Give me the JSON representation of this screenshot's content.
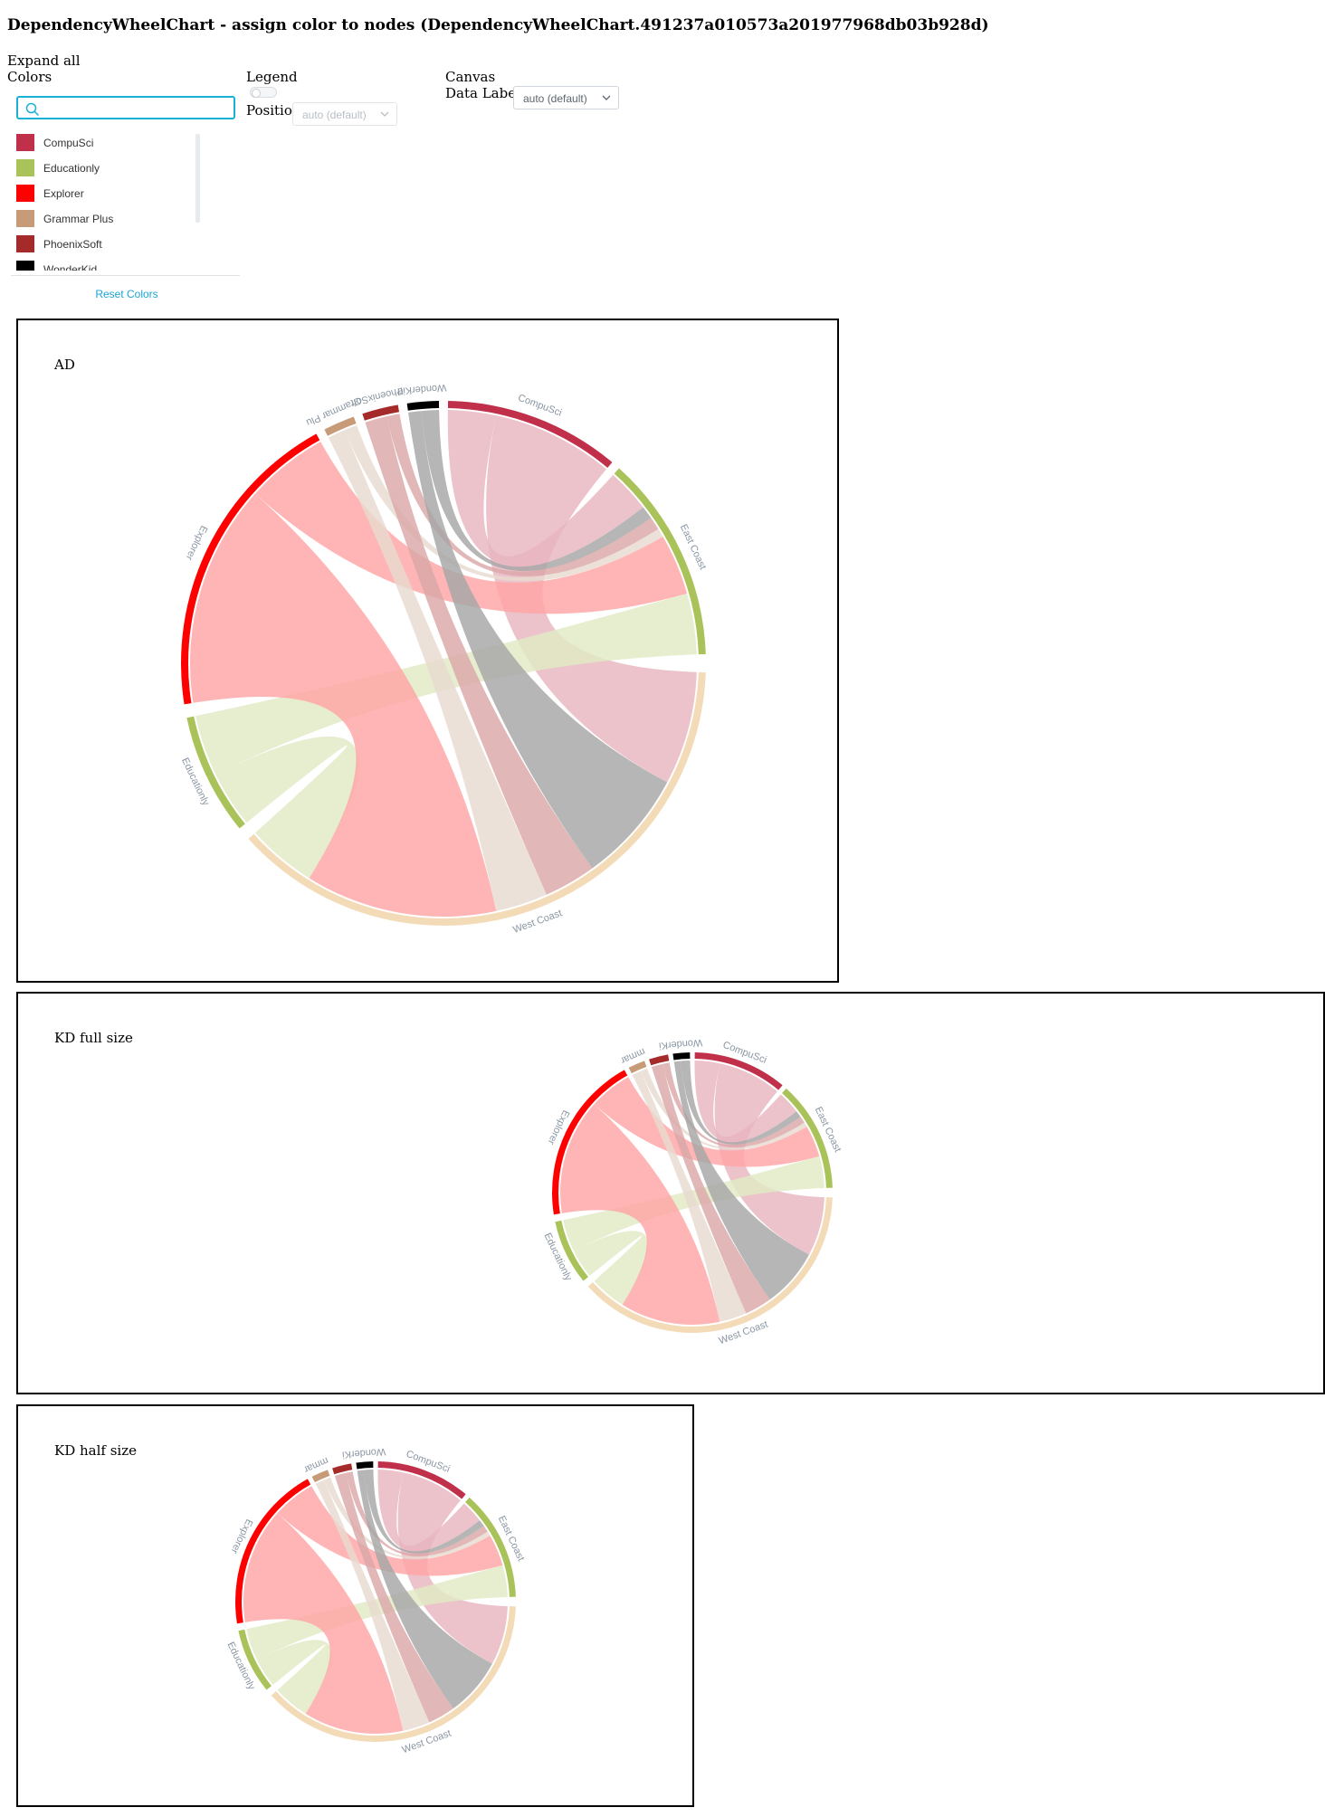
{
  "page": {
    "title": "DependencyWheelChart - assign color to nodes (DependencyWheelChart.491237a010573a201977968db03b928d)"
  },
  "controls": {
    "expand_all": "Expand all",
    "colors_label": "Colors",
    "search": {
      "value": "",
      "placeholder": ""
    },
    "colors": [
      {
        "name": "CompuSci",
        "color": "#c0304a"
      },
      {
        "name": "Educationly",
        "color": "#a9c35a"
      },
      {
        "name": "Explorer",
        "color": "#ff0000"
      },
      {
        "name": "Grammar Plus",
        "color": "#c79a78"
      },
      {
        "name": "PhoenixSoft",
        "color": "#a52a2a"
      },
      {
        "name": "WonderKid",
        "color": "#000000"
      }
    ],
    "reset_colors": "Reset Colors",
    "legend_label": "Legend",
    "legend_enabled": false,
    "position_label": "Position",
    "position_value": "auto (default)",
    "canvas_label": "Canvas",
    "data_labels_label": "Data Labels",
    "data_labels_value": "auto (default)"
  },
  "panels": [
    {
      "title": "AD"
    },
    {
      "title": "KD full size"
    },
    {
      "title": "KD half size"
    }
  ],
  "chart_data": {
    "type": "dependency-wheel",
    "nodes": [
      {
        "name": "CompuSci",
        "color": "#c0304a"
      },
      {
        "name": "East Coast",
        "color": "#a9c35a"
      },
      {
        "name": "West Coast",
        "color": "#f3dbb8"
      },
      {
        "name": "Educationly",
        "color": "#a9c35a"
      },
      {
        "name": "Explorer",
        "color": "#ff0000"
      },
      {
        "name": "Grammar Plus",
        "color": "#c79a78"
      },
      {
        "name": "PhoenixSoft",
        "color": "#a52a2a"
      },
      {
        "name": "WonderKid",
        "color": "#000000"
      }
    ],
    "links": [
      {
        "from": "CompuSci",
        "to": "East Coast",
        "color": "#e8b4bf"
      },
      {
        "from": "CompuSci",
        "to": "West Coast",
        "color": "#e8b4bf"
      },
      {
        "from": "Educationly",
        "to": "East Coast",
        "color": "#e1eac5"
      },
      {
        "from": "Educationly",
        "to": "West Coast",
        "color": "#e1eac5"
      },
      {
        "from": "Explorer",
        "to": "East Coast",
        "color": "#ffa5a5"
      },
      {
        "from": "Explorer",
        "to": "West Coast",
        "color": "#ffa5a5"
      },
      {
        "from": "Grammar Plus",
        "to": "East Coast",
        "color": "#e8dbd0"
      },
      {
        "from": "Grammar Plus",
        "to": "West Coast",
        "color": "#e8dbd0"
      },
      {
        "from": "PhoenixSoft",
        "to": "East Coast",
        "color": "#dba7a7"
      },
      {
        "from": "PhoenixSoft",
        "to": "West Coast",
        "color": "#dba7a7"
      },
      {
        "from": "WonderKid",
        "to": "East Coast",
        "color": "#a6a6a6"
      },
      {
        "from": "WonderKid",
        "to": "West Coast",
        "color": "#a6a6a6"
      }
    ],
    "charts": [
      {
        "panel": "AD",
        "labels": [
          "CompuSci",
          "East Coast",
          "West Coast",
          "Educationly",
          "Explorer",
          "Grammar Plu",
          "PhoenixSoft",
          "WonderKid"
        ]
      },
      {
        "panel": "KD full size",
        "labels": [
          "CompuSci",
          "East Coast",
          "West Coast",
          "Educationly",
          "Explorer",
          "mmar",
          "",
          "WonderKi"
        ]
      },
      {
        "panel": "KD half size",
        "labels": [
          "CompuSci",
          "East Coast",
          "West Coast",
          "Educationly",
          "Explorer",
          "mmar",
          "",
          "WonderKi"
        ]
      }
    ]
  }
}
